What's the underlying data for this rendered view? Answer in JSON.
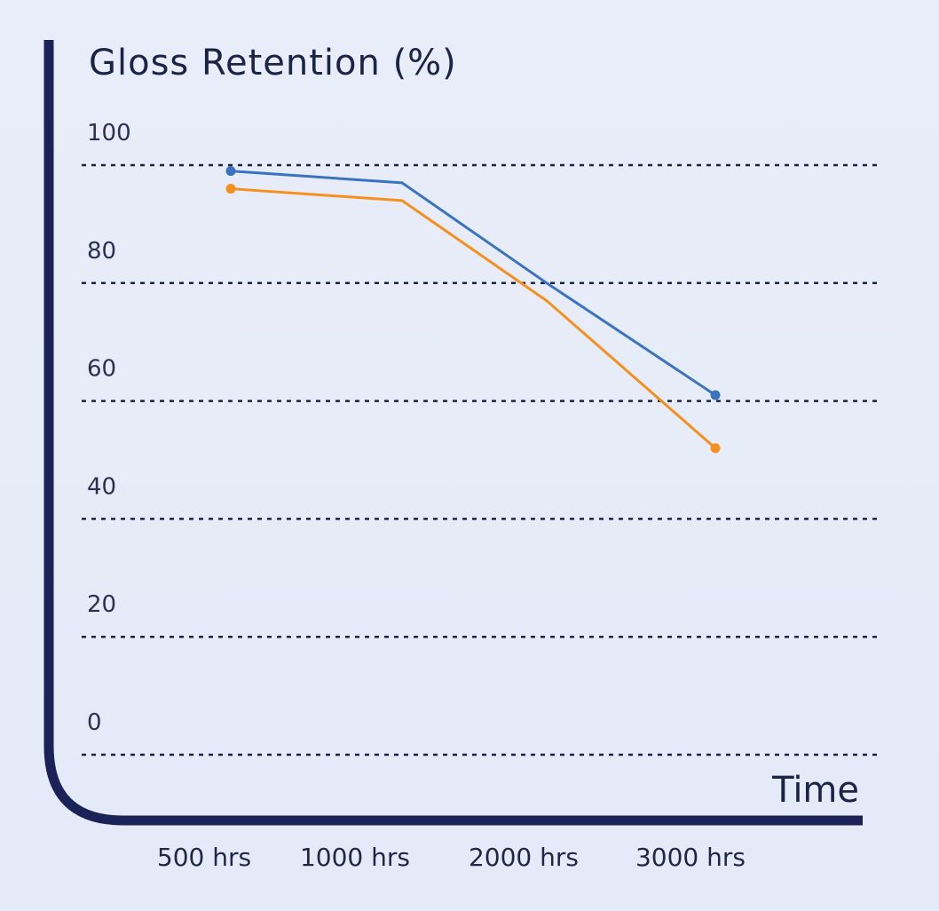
{
  "chart_data": {
    "type": "line",
    "title": "Gloss Retention (%)",
    "xlabel": "Time",
    "ylabel": "",
    "categories": [
      "500 hrs",
      "1000 hrs",
      "2000 hrs",
      "3000 hrs"
    ],
    "yticks": [
      "0",
      "20",
      "40",
      "60",
      "80",
      "100"
    ],
    "ylim": [
      0,
      100
    ],
    "grid": true,
    "series": [
      {
        "values": [
          99,
          97,
          80,
          61
        ],
        "color": "#3a73bf"
      },
      {
        "values": [
          96,
          94,
          77,
          52
        ],
        "color": "#f5901e"
      }
    ]
  }
}
